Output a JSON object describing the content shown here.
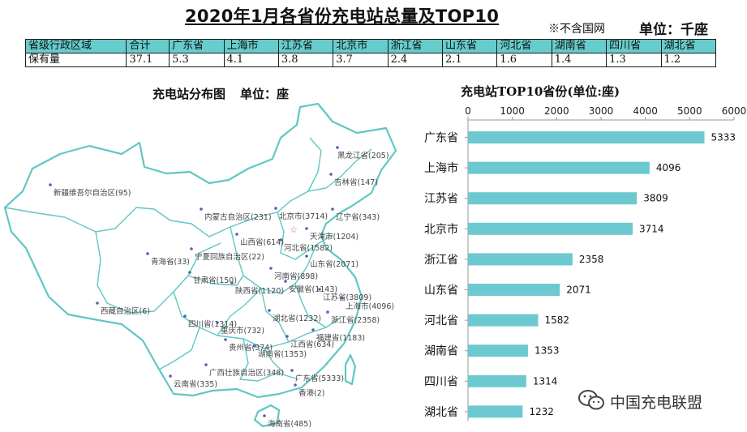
{
  "header": {
    "title": "2020年1月各省份充电站总量及TOP10",
    "note": "※不含国网",
    "unit": "单位：千座"
  },
  "summary_table": {
    "row_labels": [
      "省级行政区域",
      "保有量"
    ],
    "columns": [
      "合计",
      "广东省",
      "上海市",
      "江苏省",
      "北京市",
      "浙江省",
      "山东省",
      "河北省",
      "湖南省",
      "四川省",
      "湖北省"
    ],
    "values": [
      "37.1",
      "5.3",
      "4.1",
      "3.8",
      "3.7",
      "2.4",
      "2.1",
      "1.6",
      "1.4",
      "1.3",
      "1.2"
    ]
  },
  "map": {
    "title": "充电站分布图",
    "unit": "单位：座",
    "labels": [
      {
        "text": "黑龙江省(205)"
      },
      {
        "text": "吉林省(147)"
      },
      {
        "text": "辽宁省(343)"
      },
      {
        "text": "新疆维吾尔自治区(95)"
      },
      {
        "text": "内蒙古自治区(231)"
      },
      {
        "text": "北京市(3714)"
      },
      {
        "text": "天津市(1204)"
      },
      {
        "text": "河北省(1582)"
      },
      {
        "text": "山西省(614)"
      },
      {
        "text": "山东省(2071)"
      },
      {
        "text": "宁夏回族自治区(22)"
      },
      {
        "text": "青海省(33)"
      },
      {
        "text": "甘肃省(150)"
      },
      {
        "text": "河南省(898)"
      },
      {
        "text": "陕西省(1120)"
      },
      {
        "text": "安徽省(1143)"
      },
      {
        "text": "江苏省(3809)"
      },
      {
        "text": "上海市(4096)"
      },
      {
        "text": "西藏自治区(6)"
      },
      {
        "text": "湖北省(1232)"
      },
      {
        "text": "浙江省(2358)"
      },
      {
        "text": "四川省(1314)"
      },
      {
        "text": "重庆市(732)"
      },
      {
        "text": "福建省(1183)"
      },
      {
        "text": "贵州省(374)"
      },
      {
        "text": "江西省(634)"
      },
      {
        "text": "湖南省(1353)"
      },
      {
        "text": "广西壮族自治区(348)"
      },
      {
        "text": "广东省(5333)"
      },
      {
        "text": "云南省(335)"
      },
      {
        "text": "香港(2)"
      },
      {
        "text": "海南省(485)"
      }
    ]
  },
  "chart_data": {
    "type": "bar",
    "orientation": "horizontal",
    "title": "充电站TOP10省份(单位:座)",
    "categories": [
      "广东省",
      "上海市",
      "江苏省",
      "北京市",
      "浙江省",
      "山东省",
      "河北省",
      "湖南省",
      "四川省",
      "湖北省"
    ],
    "values": [
      5333,
      4096,
      3809,
      3714,
      2358,
      2071,
      1582,
      1353,
      1314,
      1232
    ],
    "xlim": [
      0,
      6000
    ],
    "xticks": [
      "0",
      "1000",
      "2000",
      "3000",
      "4000",
      "5000",
      "6000"
    ],
    "grid": false,
    "legend": "none",
    "bar_color": "#6cc9d1"
  },
  "watermark": {
    "icon": "wechat-icon",
    "text": "中国充电联盟"
  }
}
